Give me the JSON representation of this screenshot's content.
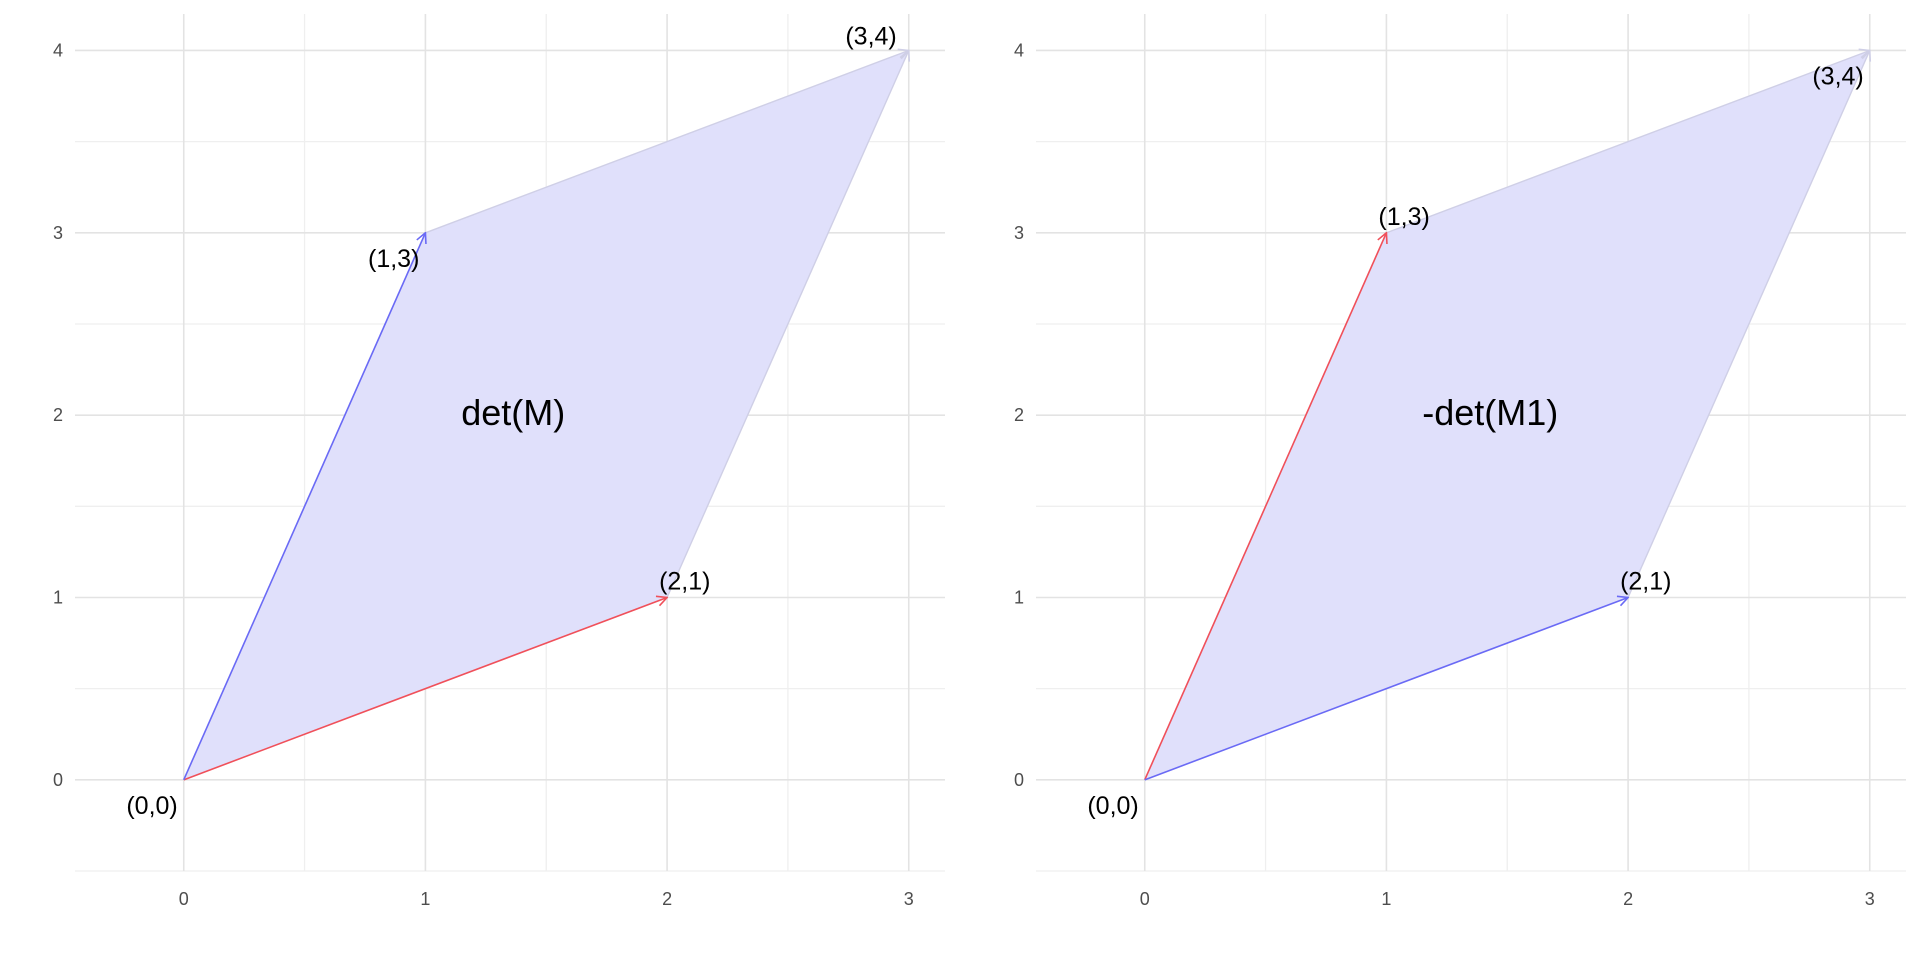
{
  "colors": {
    "fill": "#e0e0fb",
    "red_vector": "#f0505a",
    "blue_vector": "#6a6af5",
    "edge": "#cfcfe6",
    "grid_major": "#e3e3e3",
    "grid_minor": "#efefef"
  },
  "chart_data": [
    {
      "type": "parallelogram-vectors",
      "center_label": "det(M)",
      "xlim": [
        -0.45,
        3.15
      ],
      "ylim": [
        -0.5,
        4.2
      ],
      "x_ticks": [
        0,
        1,
        2,
        3
      ],
      "y_ticks": [
        0,
        1,
        2,
        3,
        4
      ],
      "grid": true,
      "polygon": [
        [
          0,
          0
        ],
        [
          2,
          1
        ],
        [
          3,
          4
        ],
        [
          1,
          3
        ]
      ],
      "vectors": [
        {
          "from": [
            0,
            0
          ],
          "to": [
            2,
            1
          ],
          "color": "red"
        },
        {
          "from": [
            0,
            0
          ],
          "to": [
            1,
            3
          ],
          "color": "blue"
        },
        {
          "from": [
            1,
            3
          ],
          "to": [
            3,
            4
          ],
          "color": "edge"
        },
        {
          "from": [
            2,
            1
          ],
          "to": [
            3,
            4
          ],
          "color": "edge"
        }
      ],
      "point_labels": [
        {
          "text": "(0,0)",
          "x": 0,
          "y": 0,
          "placement": "below-left"
        },
        {
          "text": "(2,1)",
          "x": 2,
          "y": 1,
          "placement": "above-right"
        },
        {
          "text": "(1,3)",
          "x": 1,
          "y": 3,
          "placement": "below-left"
        },
        {
          "text": "(3,4)",
          "x": 3,
          "y": 4,
          "placement": "above-left"
        }
      ]
    },
    {
      "type": "parallelogram-vectors",
      "center_label": "-det(M1)",
      "xlim": [
        -0.45,
        3.15
      ],
      "ylim": [
        -0.5,
        4.2
      ],
      "x_ticks": [
        0,
        1,
        2,
        3
      ],
      "y_ticks": [
        0,
        1,
        2,
        3,
        4
      ],
      "grid": true,
      "polygon": [
        [
          0,
          0
        ],
        [
          2,
          1
        ],
        [
          3,
          4
        ],
        [
          1,
          3
        ]
      ],
      "vectors": [
        {
          "from": [
            0,
            0
          ],
          "to": [
            1,
            3
          ],
          "color": "red"
        },
        {
          "from": [
            0,
            0
          ],
          "to": [
            2,
            1
          ],
          "color": "blue"
        },
        {
          "from": [
            1,
            3
          ],
          "to": [
            3,
            4
          ],
          "color": "edge"
        },
        {
          "from": [
            2,
            1
          ],
          "to": [
            3,
            4
          ],
          "color": "edge"
        }
      ],
      "point_labels": [
        {
          "text": "(0,0)",
          "x": 0,
          "y": 0,
          "placement": "below-left"
        },
        {
          "text": "(2,1)",
          "x": 2,
          "y": 1,
          "placement": "above-right"
        },
        {
          "text": "(1,3)",
          "x": 1,
          "y": 3,
          "placement": "above-right"
        },
        {
          "text": "(3,4)",
          "x": 3,
          "y": 4,
          "placement": "below-left"
        }
      ]
    }
  ]
}
